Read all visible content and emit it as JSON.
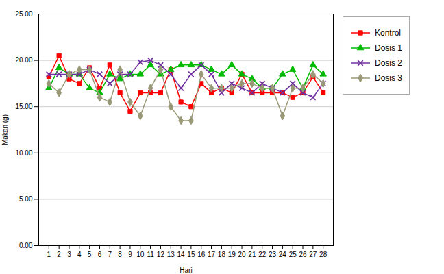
{
  "chart_data": {
    "type": "line",
    "xlabel": "Hari",
    "ylabel": "Makan (g)",
    "x": [
      1,
      2,
      3,
      4,
      5,
      6,
      7,
      8,
      9,
      10,
      11,
      12,
      13,
      14,
      15,
      16,
      17,
      18,
      19,
      20,
      21,
      22,
      23,
      24,
      25,
      26,
      27,
      28
    ],
    "series": [
      {
        "name": "Kontrol",
        "color": "#FF0000",
        "marker": "square",
        "values": [
          18.2,
          20.5,
          18.0,
          17.5,
          19.2,
          17.0,
          19.5,
          16.5,
          14.5,
          16.5,
          16.5,
          16.5,
          19.0,
          15.5,
          15.0,
          17.5,
          16.5,
          17.0,
          16.5,
          18.5,
          16.5,
          16.5,
          16.5,
          16.5,
          16.0,
          16.5,
          18.2,
          16.5
        ]
      },
      {
        "name": "Dosis 1",
        "color": "#00BB00",
        "marker": "triangle",
        "values": [
          17.0,
          19.2,
          18.5,
          18.5,
          17.0,
          16.5,
          18.5,
          18.0,
          18.5,
          18.5,
          19.5,
          18.5,
          19.0,
          19.5,
          19.5,
          19.5,
          19.0,
          18.5,
          19.5,
          18.5,
          18.0,
          17.0,
          17.0,
          18.5,
          19.0,
          17.0,
          19.5,
          18.5
        ]
      },
      {
        "name": "Dosis 2",
        "color": "#7030A0",
        "marker": "x",
        "values": [
          18.5,
          18.5,
          18.5,
          18.5,
          19.0,
          18.5,
          17.5,
          18.5,
          18.5,
          19.8,
          20.0,
          19.5,
          18.5,
          17.0,
          18.5,
          19.5,
          18.5,
          16.5,
          17.5,
          17.0,
          16.5,
          17.5,
          17.0,
          16.5,
          17.5,
          16.5,
          16.0,
          17.5
        ]
      },
      {
        "name": "Dosis 3",
        "color": "#999977",
        "marker": "diamond",
        "values": [
          17.5,
          16.5,
          18.5,
          19.0,
          19.0,
          16.0,
          15.5,
          19.0,
          15.5,
          14.0,
          17.0,
          19.0,
          15.0,
          13.5,
          13.5,
          18.5,
          17.0,
          17.0,
          17.0,
          17.5,
          17.5,
          17.0,
          17.0,
          14.0,
          17.0,
          17.0,
          18.5,
          17.5
        ]
      }
    ],
    "xlim": [
      0,
      29
    ],
    "xticks": [
      1,
      2,
      3,
      4,
      5,
      6,
      7,
      8,
      9,
      10,
      11,
      12,
      13,
      14,
      15,
      16,
      17,
      18,
      19,
      20,
      21,
      22,
      23,
      24,
      25,
      26,
      27,
      28
    ],
    "ylim": [
      0.0,
      25.0
    ],
    "yticks": [
      {
        "value": 0,
        "label": "0.00"
      },
      {
        "value": 5,
        "label": "5.00"
      },
      {
        "value": 10,
        "label": "10.00"
      },
      {
        "value": 15,
        "label": "15.00"
      },
      {
        "value": 20,
        "label": "20.00"
      },
      {
        "value": 25,
        "label": "25.00"
      }
    ],
    "grid": "y",
    "legend": "right"
  }
}
